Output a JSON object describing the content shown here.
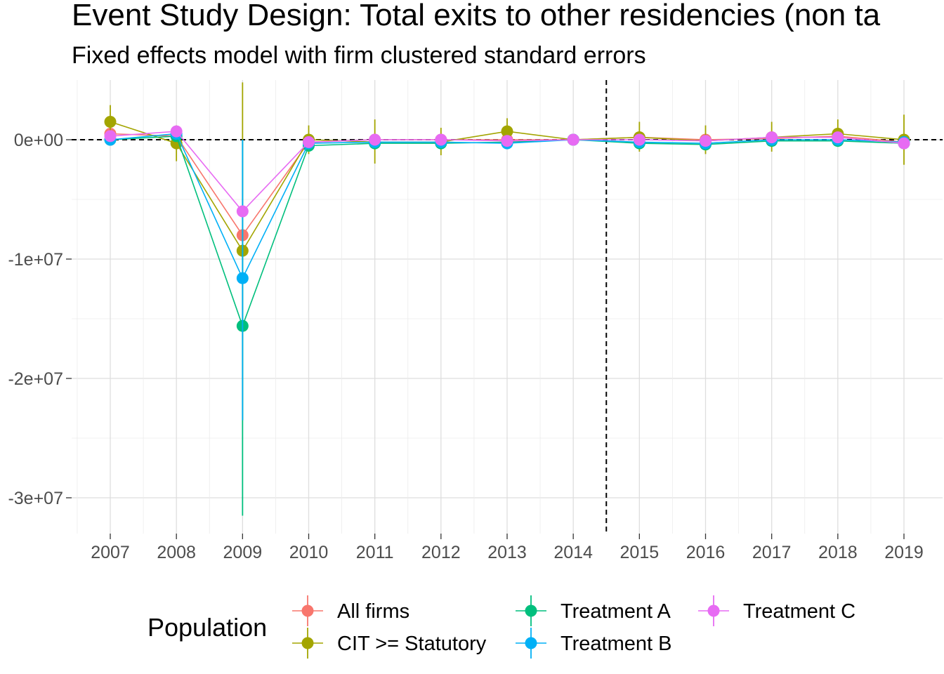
{
  "chart_data": {
    "type": "line",
    "title": "Event Study Design: Total exits to other residencies (non ta",
    "subtitle": "Fixed effects model with firm clustered standard errors",
    "xlabel": "",
    "ylabel": "",
    "x": [
      "2007",
      "2008",
      "2009",
      "2010",
      "2011",
      "2012",
      "2013",
      "2014",
      "2015",
      "2016",
      "2017",
      "2018",
      "2019"
    ],
    "ylim": [
      -33000000,
      5000000
    ],
    "y_ticks": [
      0,
      -10000000,
      -20000000,
      -30000000
    ],
    "y_tick_labels": [
      "0e+00",
      "-1e+07",
      "-2e+07",
      "-3e+07"
    ],
    "hline": 0,
    "vline_between": [
      "2014",
      "2015"
    ],
    "grid": true,
    "legend": {
      "title": "Population",
      "position": "bottom"
    },
    "series": [
      {
        "name": "All firms",
        "color": "#F8766D",
        "values": [
          500000,
          300000,
          -8000000,
          -200000,
          0,
          0,
          0,
          0,
          200000,
          0,
          100000,
          300000,
          -200000
        ],
        "lower": [
          0,
          0,
          -8000000,
          -400000,
          -200000,
          -200000,
          -200000,
          0,
          0,
          -200000,
          -100000,
          0,
          -400000
        ],
        "upper": [
          900000,
          600000,
          -8000000,
          0,
          200000,
          200000,
          200000,
          0,
          400000,
          200000,
          300000,
          600000,
          0
        ]
      },
      {
        "name": "CIT >= Statutory",
        "color": "#A3A500",
        "values": [
          1500000,
          -300000,
          -9300000,
          0,
          -200000,
          -200000,
          700000,
          0,
          200000,
          -100000,
          200000,
          500000,
          0
        ],
        "lower": [
          0,
          -1800000,
          -23500000,
          -1200000,
          -2000000,
          -1300000,
          -300000,
          0,
          -1000000,
          -1200000,
          -1000000,
          -500000,
          -2100000
        ],
        "upper": [
          2900000,
          1200000,
          4800000,
          1200000,
          1700000,
          1000000,
          1800000,
          0,
          1500000,
          1200000,
          1500000,
          1700000,
          2100000
        ]
      },
      {
        "name": "Treatment A",
        "color": "#00BF7D",
        "values": [
          0,
          300000,
          -15600000,
          -500000,
          -300000,
          -300000,
          -200000,
          0,
          -300000,
          -400000,
          -100000,
          -100000,
          -300000
        ],
        "lower": [
          -200000,
          0,
          -31500000,
          -800000,
          -600000,
          -600000,
          -500000,
          0,
          -600000,
          -800000,
          -400000,
          -400000,
          -600000
        ],
        "upper": [
          200000,
          600000,
          0,
          -200000,
          0,
          0,
          0,
          0,
          0,
          0,
          200000,
          200000,
          0
        ]
      },
      {
        "name": "Treatment B",
        "color": "#00B0F6",
        "values": [
          0,
          500000,
          -11600000,
          -300000,
          -200000,
          -200000,
          -300000,
          0,
          -200000,
          -300000,
          0,
          0,
          -200000
        ],
        "lower": [
          -200000,
          200000,
          -23500000,
          -600000,
          -500000,
          -500000,
          -600000,
          0,
          -500000,
          -600000,
          -300000,
          -300000,
          -500000
        ],
        "upper": [
          200000,
          800000,
          0,
          0,
          100000,
          100000,
          0,
          0,
          100000,
          0,
          300000,
          300000,
          100000
        ]
      },
      {
        "name": "Treatment C",
        "color": "#E76BF3",
        "values": [
          300000,
          700000,
          -6000000,
          -200000,
          0,
          0,
          -100000,
          0,
          0,
          -100000,
          200000,
          200000,
          -300000
        ],
        "lower": [
          0,
          400000,
          -6000000,
          -400000,
          -200000,
          -200000,
          -300000,
          0,
          -200000,
          -300000,
          0,
          0,
          -500000
        ],
        "upper": [
          600000,
          1000000,
          -6000000,
          0,
          200000,
          200000,
          100000,
          0,
          200000,
          100000,
          400000,
          400000,
          -100000
        ]
      }
    ]
  }
}
